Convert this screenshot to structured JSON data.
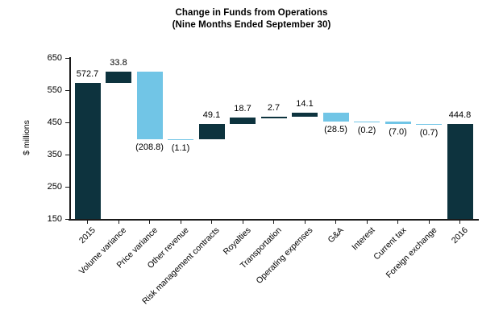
{
  "chart_data": {
    "type": "bar",
    "subtype": "waterfall",
    "title": "Change in Funds from Operations",
    "subtitle": "(Nine Months Ended September 30)",
    "xlabel": "",
    "ylabel": "$ millions",
    "ylim": [
      150,
      650
    ],
    "yticks": [
      150,
      250,
      350,
      450,
      550,
      650
    ],
    "grid": false,
    "legend": false,
    "colors": {
      "total": "#0d333e",
      "increase": "#0d333e",
      "decrease": "#71c5e6"
    },
    "points": [
      {
        "category": "2015",
        "label": "572.7",
        "value": 572.7,
        "kind": "total"
      },
      {
        "category": "Volume variance",
        "label": "33.8",
        "value": 33.8,
        "kind": "increase"
      },
      {
        "category": "Price variance",
        "label": "(208.8)",
        "value": -208.8,
        "kind": "decrease"
      },
      {
        "category": "Other revenue",
        "label": "(1.1)",
        "value": -1.1,
        "kind": "decrease"
      },
      {
        "category": "Risk management contracts",
        "label": "49.1",
        "value": 49.1,
        "kind": "increase"
      },
      {
        "category": "Royalties",
        "label": "18.7",
        "value": 18.7,
        "kind": "increase"
      },
      {
        "category": "Transportation",
        "label": "2.7",
        "value": 2.7,
        "kind": "increase"
      },
      {
        "category": "Operating expenses",
        "label": "14.1",
        "value": 14.1,
        "kind": "increase"
      },
      {
        "category": "G&A",
        "label": "(28.5)",
        "value": -28.5,
        "kind": "decrease"
      },
      {
        "category": "Interest",
        "label": "(0.2)",
        "value": -0.2,
        "kind": "decrease"
      },
      {
        "category": "Current tax",
        "label": "(7.0)",
        "value": -7.0,
        "kind": "decrease"
      },
      {
        "category": "Foreign exchange",
        "label": "(0.7)",
        "value": -0.7,
        "kind": "decrease"
      },
      {
        "category": "2016",
        "label": "444.8",
        "value": 444.8,
        "kind": "total"
      }
    ]
  }
}
